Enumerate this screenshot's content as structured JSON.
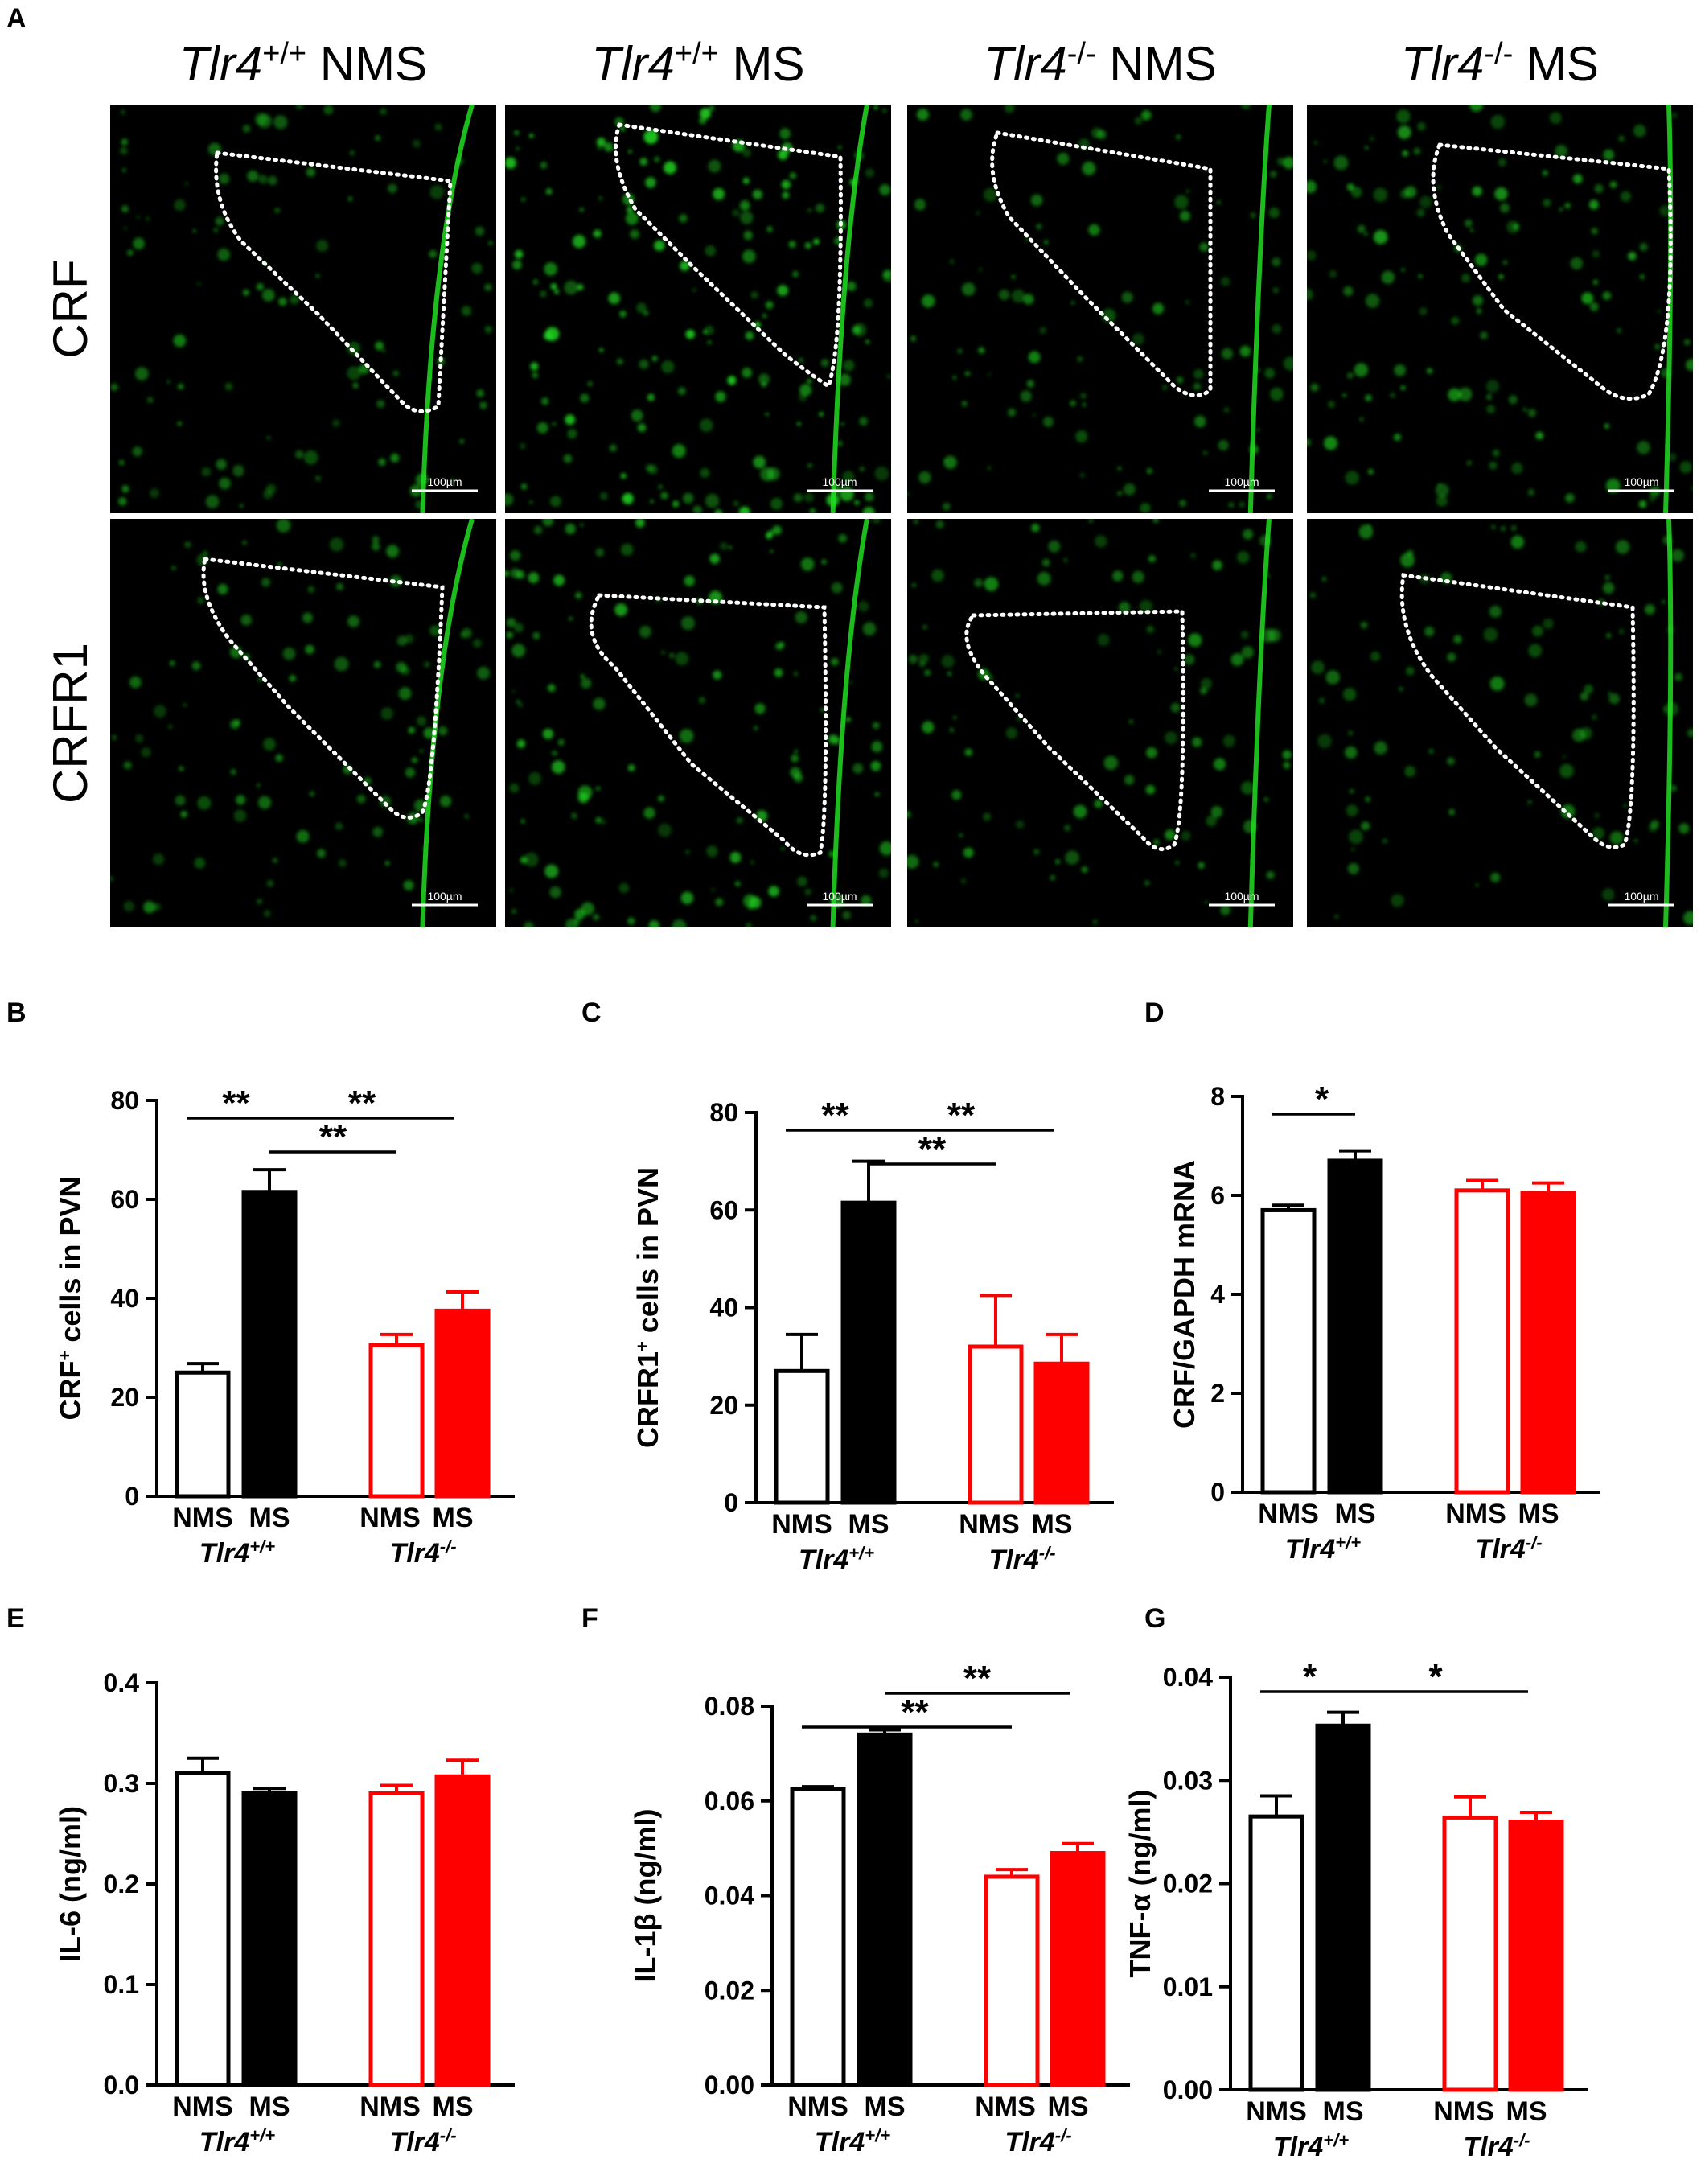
{
  "panel_a": {
    "letter": "A",
    "columns": [
      {
        "gene": "Tlr4",
        "sup": "+/+",
        "group": "NMS"
      },
      {
        "gene": "Tlr4",
        "sup": "+/+",
        "group": "MS"
      },
      {
        "gene": "Tlr4",
        "sup": "-/-",
        "group": "NMS"
      },
      {
        "gene": "Tlr4",
        "sup": "-/-",
        "group": "MS"
      }
    ],
    "rows": [
      "CRF",
      "CRFR1"
    ],
    "scale_bar_label": "100µm",
    "fluorescence_color": "#22dd22"
  },
  "colors": {
    "wt": "#000000",
    "ko": "#ff0000",
    "fill_open": "#ffffff"
  },
  "chart_data": [
    {
      "id": "B",
      "letter": "B",
      "type": "bar",
      "ylabel_main": "CRF",
      "ylabel_sup": "+",
      "ylabel_rest": " cells in PVN",
      "yticks": [
        "0",
        "20",
        "40",
        "60",
        "80"
      ],
      "ylim": [
        0,
        80
      ],
      "categories": [
        "NMS",
        "MS",
        "NMS",
        "MS"
      ],
      "groups": [
        {
          "gene": "Tlr4",
          "sup": "+/+"
        },
        {
          "gene": "Tlr4",
          "sup": "-/-"
        }
      ],
      "values": [
        25,
        61.5,
        30.5,
        37.5
      ],
      "errors": [
        1.8,
        4.5,
        2.2,
        3.8
      ],
      "significance": [
        {
          "from": 0,
          "to": 1,
          "label": "**"
        },
        {
          "from": 1,
          "to": 3,
          "label": "**"
        },
        {
          "from": 1,
          "to": 2,
          "label": "**"
        }
      ]
    },
    {
      "id": "C",
      "letter": "C",
      "type": "bar",
      "ylabel_main": "CRFR1",
      "ylabel_sup": "+",
      "ylabel_rest": " cells in PVN",
      "yticks": [
        "0",
        "20",
        "40",
        "60",
        "80"
      ],
      "ylim": [
        0,
        80
      ],
      "categories": [
        "NMS",
        "MS",
        "NMS",
        "MS"
      ],
      "groups": [
        {
          "gene": "Tlr4",
          "sup": "+/+"
        },
        {
          "gene": "Tlr4",
          "sup": "-/-"
        }
      ],
      "values": [
        27,
        61.5,
        32,
        28.5
      ],
      "errors": [
        7.5,
        8.5,
        10.5,
        6
      ],
      "significance": [
        {
          "from": 0,
          "to": 1,
          "label": "**"
        },
        {
          "from": 1,
          "to": 3,
          "label": "**"
        },
        {
          "from": 1,
          "to": 2,
          "label": "**"
        }
      ]
    },
    {
      "id": "D",
      "letter": "D",
      "type": "bar",
      "ylabel_main": "CRF/GAPDH mRNA",
      "ylabel_sup": "",
      "ylabel_rest": "",
      "yticks": [
        "0",
        "2",
        "4",
        "6",
        "8"
      ],
      "ylim": [
        0,
        8
      ],
      "categories": [
        "NMS",
        "MS",
        "NMS",
        "MS"
      ],
      "groups": [
        {
          "gene": "Tlr4",
          "sup": "+/+"
        },
        {
          "gene": "Tlr4",
          "sup": "-/-"
        }
      ],
      "values": [
        5.7,
        6.7,
        6.1,
        6.05
      ],
      "errors": [
        0.1,
        0.2,
        0.2,
        0.2
      ],
      "significance": [
        {
          "from": 0,
          "to": 1,
          "label": "*"
        }
      ]
    },
    {
      "id": "E",
      "letter": "E",
      "type": "bar",
      "ylabel_main": "IL-6 (ng/ml)",
      "ylabel_sup": "",
      "ylabel_rest": "",
      "yticks": [
        "0.0",
        "0.1",
        "0.2",
        "0.3",
        "0.4"
      ],
      "ylim": [
        0,
        0.4
      ],
      "categories": [
        "NMS",
        "MS",
        "NMS",
        "MS"
      ],
      "groups": [
        {
          "gene": "Tlr4",
          "sup": "+/+"
        },
        {
          "gene": "Tlr4",
          "sup": "-/-"
        }
      ],
      "values": [
        0.31,
        0.29,
        0.29,
        0.307
      ],
      "errors": [
        0.015,
        0.005,
        0.008,
        0.016
      ],
      "significance": []
    },
    {
      "id": "F",
      "letter": "F",
      "type": "bar",
      "ylabel_main": "IL-1β (ng/ml)",
      "ylabel_sup": "",
      "ylabel_rest": "",
      "yticks": [
        "0.00",
        "0.02",
        "0.04",
        "0.06",
        "0.08"
      ],
      "ylim": [
        0,
        0.08
      ],
      "categories": [
        "NMS",
        "MS",
        "NMS",
        "MS"
      ],
      "groups": [
        {
          "gene": "Tlr4",
          "sup": "+/+"
        },
        {
          "gene": "Tlr4",
          "sup": "-/-"
        }
      ],
      "values": [
        0.0625,
        0.074,
        0.044,
        0.049
      ],
      "errors": [
        0.0005,
        0.001,
        0.0015,
        0.002
      ],
      "significance": [
        {
          "from": 1,
          "to": 3,
          "label": "**"
        },
        {
          "from": 0,
          "to": 2,
          "label": "**"
        }
      ]
    },
    {
      "id": "G",
      "letter": "G",
      "type": "bar",
      "ylabel_main": "TNF-α (ng/ml)",
      "ylabel_sup": "",
      "ylabel_rest": "",
      "yticks": [
        "0.00",
        "0.01",
        "0.02",
        "0.03",
        "0.04"
      ],
      "ylim": [
        0,
        0.04
      ],
      "categories": [
        "NMS",
        "MS",
        "NMS",
        "MS"
      ],
      "groups": [
        {
          "gene": "Tlr4",
          "sup": "+/+"
        },
        {
          "gene": "Tlr4",
          "sup": "-/-"
        }
      ],
      "values": [
        0.0265,
        0.0353,
        0.0264,
        0.026
      ],
      "errors": [
        0.002,
        0.0013,
        0.002,
        0.0009
      ],
      "significance": [
        {
          "from": 0,
          "to": 1,
          "label": "*"
        },
        {
          "from": 1,
          "to": 3,
          "label": "*"
        }
      ]
    }
  ]
}
